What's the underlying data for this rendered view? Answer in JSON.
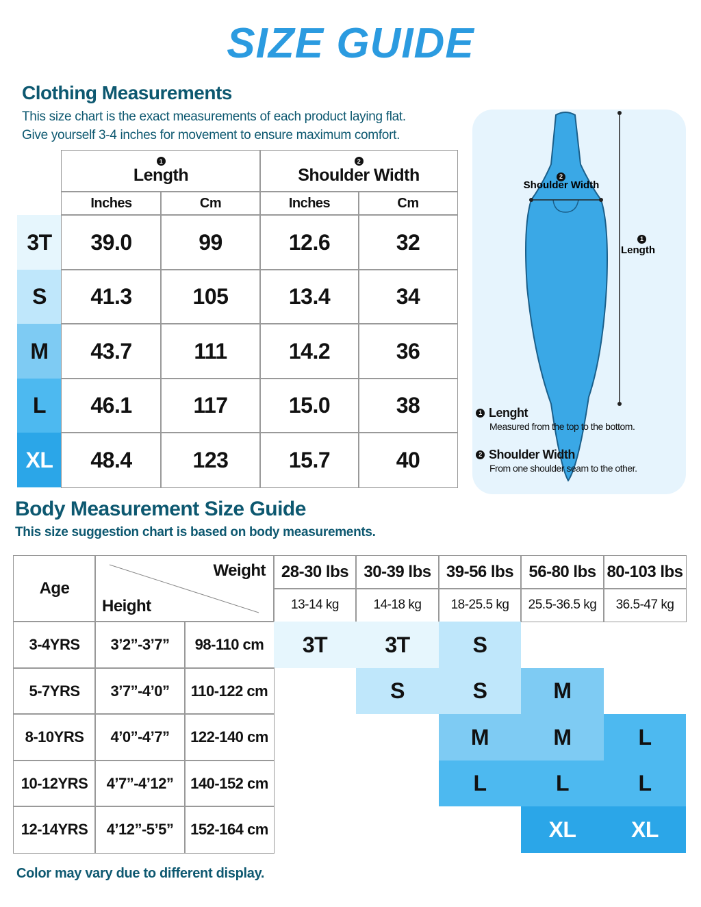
{
  "title": "SIZE GUIDE",
  "clothing": {
    "heading": "Clothing Measurements",
    "notes": [
      "This size chart is the exact measurements of each product laying flat.",
      "Give yourself 3-4 inches for movement to ensure maximum comfort."
    ],
    "groups": [
      {
        "marker": "1",
        "label": "Length"
      },
      {
        "marker": "2",
        "label": "Shoulder Width"
      }
    ],
    "units": [
      "Inches",
      "Cm",
      "Inches",
      "Cm"
    ],
    "rows": [
      [
        "3T",
        "39.0",
        "99",
        "12.6",
        "32"
      ],
      [
        "S",
        "41.3",
        "105",
        "13.4",
        "34"
      ],
      [
        "M",
        "43.7",
        "111",
        "14.2",
        "36"
      ],
      [
        "L",
        "46.1",
        "117",
        "15.0",
        "38"
      ],
      [
        "XL",
        "48.4",
        "123",
        "15.7",
        "40"
      ]
    ]
  },
  "diagram": {
    "shoulder": {
      "marker": "2",
      "label": "Shoulder Width"
    },
    "length": {
      "marker": "1",
      "label": "Length"
    },
    "legend": [
      {
        "marker": "1",
        "title": "Lenght",
        "desc": "Measured from the top to the bottom."
      },
      {
        "marker": "2",
        "title": "Shoulder Width",
        "desc": "From one shoulder seam to the other."
      }
    ]
  },
  "body": {
    "heading": "Body Measurement Size Guide",
    "note": "This size suggestion chart is based on body measurements.",
    "age_header": "Age",
    "weight_header": "Weight",
    "height_header": "Height",
    "weights": [
      {
        "lbs": "28-30 lbs",
        "kg": "13-14 kg"
      },
      {
        "lbs": "30-39 lbs",
        "kg": "14-18 kg"
      },
      {
        "lbs": "39-56 lbs",
        "kg": "18-25.5 kg"
      },
      {
        "lbs": "56-80 lbs",
        "kg": "25.5-36.5 kg"
      },
      {
        "lbs": "80-103 lbs",
        "kg": "36.5-47 kg"
      }
    ],
    "rows": [
      {
        "age": "3-4YRS",
        "ft": "3’2”-3’7”",
        "cm": "98-110 cm",
        "sizes": [
          "3T",
          "3T",
          "S",
          null,
          null
        ]
      },
      {
        "age": "5-7YRS",
        "ft": "3’7”-4’0”",
        "cm": "110-122 cm",
        "sizes": [
          null,
          "S",
          "S",
          "M",
          null
        ]
      },
      {
        "age": "8-10YRS",
        "ft": "4’0”-4’7”",
        "cm": "122-140 cm",
        "sizes": [
          null,
          null,
          "M",
          "M",
          "L"
        ]
      },
      {
        "age": "10-12YRS",
        "ft": "4’7”-4’12”",
        "cm": "140-152 cm",
        "sizes": [
          null,
          null,
          "L",
          "L",
          "L"
        ]
      },
      {
        "age": "12-14YRS",
        "ft": "4’12”-5’5”",
        "cm": "152-164 cm",
        "sizes": [
          null,
          null,
          null,
          "XL",
          "XL"
        ]
      }
    ]
  },
  "footer": "Color may vary due to different display."
}
